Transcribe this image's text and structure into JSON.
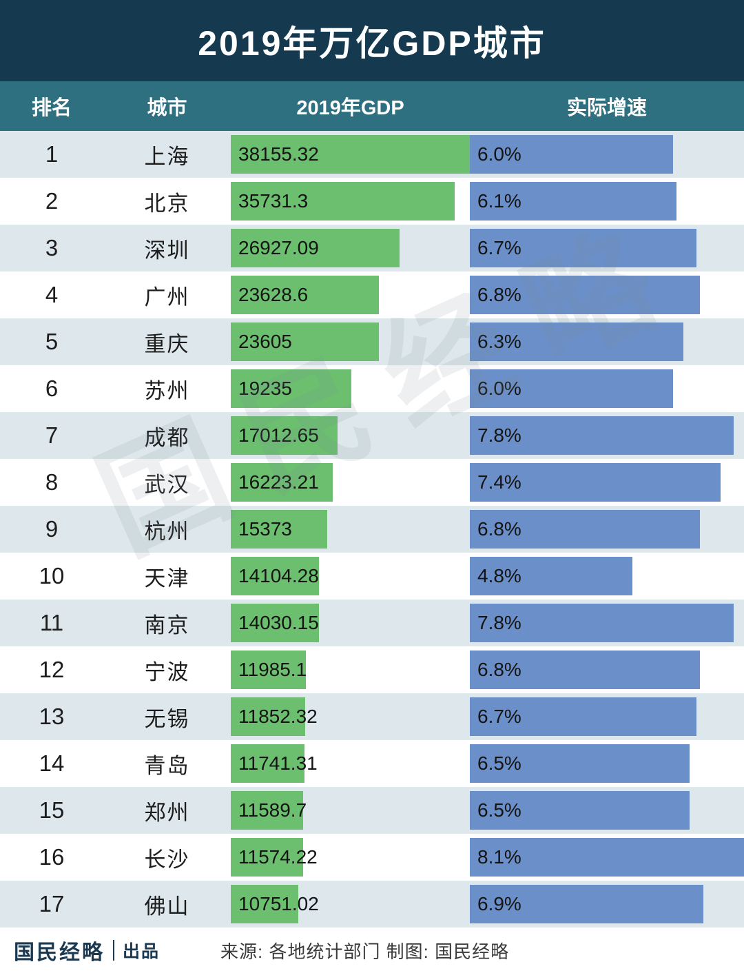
{
  "title": "2019年万亿GDP城市",
  "columns": {
    "rank": "排名",
    "city": "城市",
    "gdp": "2019年GDP",
    "growth": "实际增速"
  },
  "rows": [
    {
      "rank": "1",
      "city": "上海",
      "gdp": "38155.32",
      "growth": "6.0%"
    },
    {
      "rank": "2",
      "city": "北京",
      "gdp": "35731.3",
      "growth": "6.1%"
    },
    {
      "rank": "3",
      "city": "深圳",
      "gdp": "26927.09",
      "growth": "6.7%"
    },
    {
      "rank": "4",
      "city": "广州",
      "gdp": "23628.6",
      "growth": "6.8%"
    },
    {
      "rank": "5",
      "city": "重庆",
      "gdp": "23605",
      "growth": "6.3%"
    },
    {
      "rank": "6",
      "city": "苏州",
      "gdp": "19235",
      "growth": "6.0%"
    },
    {
      "rank": "7",
      "city": "成都",
      "gdp": "17012.65",
      "growth": "7.8%"
    },
    {
      "rank": "8",
      "city": "武汉",
      "gdp": "16223.21",
      "growth": "7.4%"
    },
    {
      "rank": "9",
      "city": "杭州",
      "gdp": "15373",
      "growth": "6.8%"
    },
    {
      "rank": "10",
      "city": "天津",
      "gdp": "14104.28",
      "growth": "4.8%"
    },
    {
      "rank": "11",
      "city": "南京",
      "gdp": "14030.15",
      "growth": "7.8%"
    },
    {
      "rank": "12",
      "city": "宁波",
      "gdp": "11985.1",
      "growth": "6.8%"
    },
    {
      "rank": "13",
      "city": "无锡",
      "gdp": "11852.32",
      "growth": "6.7%"
    },
    {
      "rank": "14",
      "city": "青岛",
      "gdp": "11741.31",
      "growth": "6.5%"
    },
    {
      "rank": "15",
      "city": "郑州",
      "gdp": "11589.7",
      "growth": "6.5%"
    },
    {
      "rank": "16",
      "city": "长沙",
      "gdp": "11574.22",
      "growth": "8.1%"
    },
    {
      "rank": "17",
      "city": "佛山",
      "gdp": "10751.02",
      "growth": "6.9%"
    }
  ],
  "chart_data": {
    "type": "bar",
    "orientation": "horizontal",
    "title": "2019年万亿GDP城市",
    "categories": [
      "上海",
      "北京",
      "深圳",
      "广州",
      "重庆",
      "苏州",
      "成都",
      "武汉",
      "杭州",
      "天津",
      "南京",
      "宁波",
      "无锡",
      "青岛",
      "郑州",
      "长沙",
      "佛山"
    ],
    "series": [
      {
        "name": "2019年GDP",
        "values": [
          38155.32,
          35731.3,
          26927.09,
          23628.6,
          23605,
          19235,
          17012.65,
          16223.21,
          15373,
          14104.28,
          14030.15,
          11985.1,
          11852.32,
          11741.31,
          11589.7,
          11574.22,
          10751.02
        ]
      },
      {
        "name": "实际增速(%)",
        "values": [
          6.0,
          6.1,
          6.7,
          6.8,
          6.3,
          6.0,
          7.8,
          7.4,
          6.8,
          4.8,
          7.8,
          6.8,
          6.7,
          6.5,
          6.5,
          8.1,
          6.9
        ]
      }
    ],
    "gdp_max": 38155.32,
    "growth_max": 8.1,
    "grid": false,
    "legend_position": "none"
  },
  "watermark": "国民经略",
  "footer": {
    "brand": "国民经略",
    "brand_suffix": "出品",
    "source": "来源: 各地统计部门 制图: 国民经略"
  },
  "colors": {
    "title_bg": "#15394F",
    "header_bg": "#2E6F80",
    "bar_green": "#6BBF6E",
    "bar_blue": "#6B8FC8",
    "row_alt_bg": "#DEE8EC",
    "text_dark": "#1D1D1D"
  }
}
